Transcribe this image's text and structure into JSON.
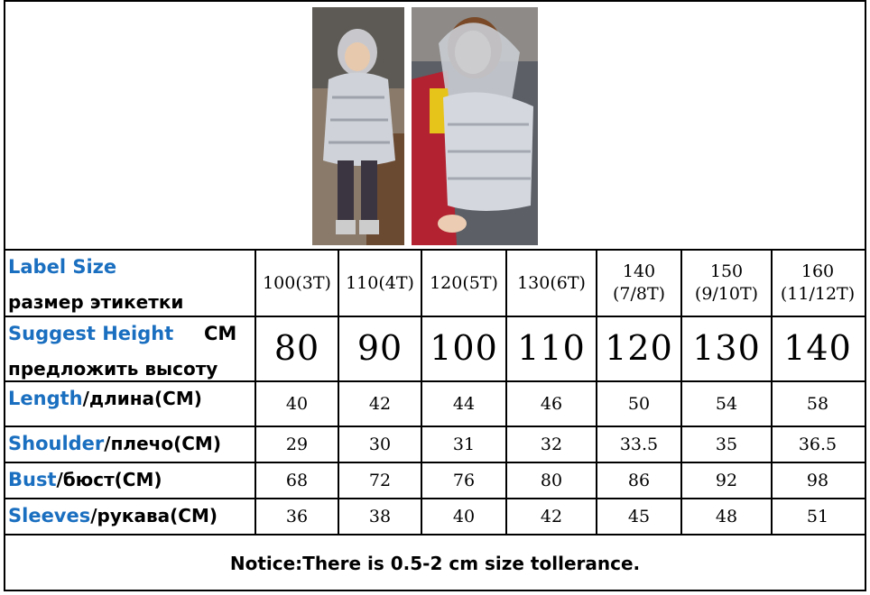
{
  "table": {
    "row_labels": {
      "label_size": {
        "en": "Label Size",
        "ru": "размер этикетки"
      },
      "suggest_height": {
        "en": "Suggest Height",
        "unit": "CM",
        "ru": "предложить высоту"
      },
      "length": {
        "en": "Length",
        "ru": "/длина(CM)"
      },
      "shoulder": {
        "en": "Shoulder",
        "ru": "/плечо(CM)"
      },
      "bust": {
        "en": "Bust",
        "ru": "/бюст(CM)"
      },
      "sleeves": {
        "en": "Sleeves",
        "ru": "/рукава(CM)"
      }
    },
    "sizes": [
      {
        "label": "100(3T)",
        "height": "80",
        "length": "40",
        "shoulder": "29",
        "bust": "68",
        "sleeves": "36"
      },
      {
        "label": "110(4T)",
        "height": "90",
        "length": "42",
        "shoulder": "30",
        "bust": "72",
        "sleeves": "38"
      },
      {
        "label": "120(5T)",
        "height": "100",
        "length": "44",
        "shoulder": "31",
        "bust": "76",
        "sleeves": "40"
      },
      {
        "label": "130(6T)",
        "height": "110",
        "length": "46",
        "shoulder": "32",
        "bust": "80",
        "sleeves": "42"
      },
      {
        "label": "140\n(7/8T)",
        "height": "120",
        "length": "50",
        "shoulder": "33.5",
        "bust": "86",
        "sleeves": "45"
      },
      {
        "label": "150\n(9/10T)",
        "height": "130",
        "length": "54",
        "shoulder": "35",
        "bust": "92",
        "sleeves": "48"
      },
      {
        "label": "160\n(11/12T)",
        "height": "140",
        "length": "58",
        "shoulder": "36.5",
        "bust": "98",
        "sleeves": "51"
      }
    ]
  },
  "notice": "Notice:There is 0.5-2 cm size tollerance."
}
